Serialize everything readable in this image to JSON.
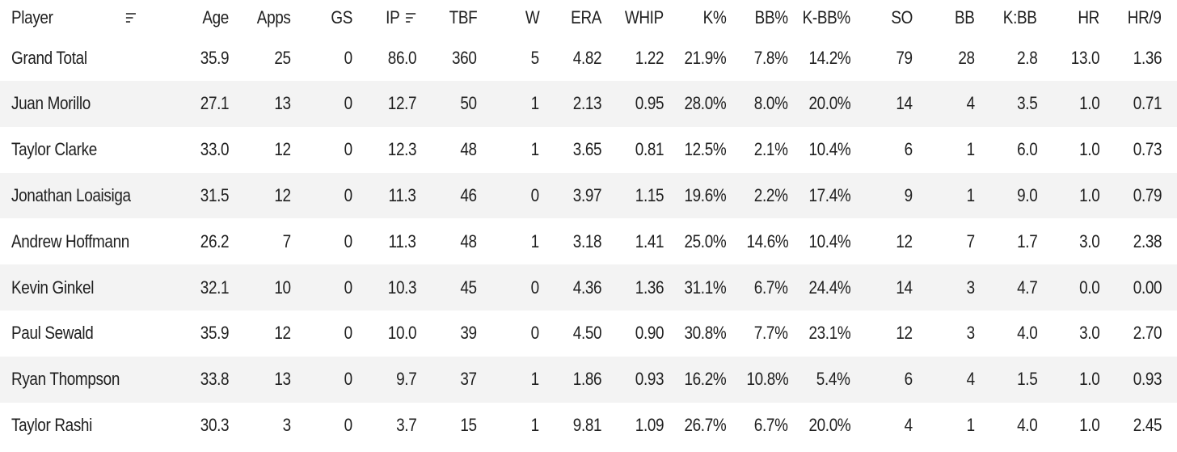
{
  "table": {
    "columns": [
      {
        "key": "player",
        "label": "Player",
        "sortable_icon": "sort-lines-icon"
      },
      {
        "key": "age",
        "label": "Age"
      },
      {
        "key": "apps",
        "label": "Apps"
      },
      {
        "key": "gs",
        "label": "GS"
      },
      {
        "key": "ip",
        "label": "IP",
        "sorted_icon": "sort-desc-icon"
      },
      {
        "key": "tbf",
        "label": "TBF"
      },
      {
        "key": "w",
        "label": "W"
      },
      {
        "key": "era",
        "label": "ERA"
      },
      {
        "key": "whip",
        "label": "WHIP"
      },
      {
        "key": "kpct",
        "label": "K%"
      },
      {
        "key": "bbpct",
        "label": "BB%"
      },
      {
        "key": "kbbpct",
        "label": "K-BB%"
      },
      {
        "key": "so",
        "label": "SO"
      },
      {
        "key": "bb",
        "label": "BB"
      },
      {
        "key": "kbb",
        "label": "K:BB"
      },
      {
        "key": "hr",
        "label": "HR"
      },
      {
        "key": "hr9",
        "label": "HR/9"
      }
    ],
    "total": [
      "Grand Total",
      "35.9",
      "25",
      "0",
      "86.0",
      "360",
      "5",
      "4.82",
      "1.22",
      "21.9%",
      "7.8%",
      "14.2%",
      "79",
      "28",
      "2.8",
      "13.0",
      "1.36"
    ],
    "rows": [
      [
        "Juan Morillo",
        "27.1",
        "13",
        "0",
        "12.7",
        "50",
        "1",
        "2.13",
        "0.95",
        "28.0%",
        "8.0%",
        "20.0%",
        "14",
        "4",
        "3.5",
        "1.0",
        "0.71"
      ],
      [
        "Taylor Clarke",
        "33.0",
        "12",
        "0",
        "12.3",
        "48",
        "1",
        "3.65",
        "0.81",
        "12.5%",
        "2.1%",
        "10.4%",
        "6",
        "1",
        "6.0",
        "1.0",
        "0.73"
      ],
      [
        "Jonathan Loaisiga",
        "31.5",
        "12",
        "0",
        "11.3",
        "46",
        "0",
        "3.97",
        "1.15",
        "19.6%",
        "2.2%",
        "17.4%",
        "9",
        "1",
        "9.0",
        "1.0",
        "0.79"
      ],
      [
        "Andrew Hoffmann",
        "26.2",
        "7",
        "0",
        "11.3",
        "48",
        "1",
        "3.18",
        "1.41",
        "25.0%",
        "14.6%",
        "10.4%",
        "12",
        "7",
        "1.7",
        "3.0",
        "2.38"
      ],
      [
        "Kevin Ginkel",
        "32.1",
        "10",
        "0",
        "10.3",
        "45",
        "0",
        "4.36",
        "1.36",
        "31.1%",
        "6.7%",
        "24.4%",
        "14",
        "3",
        "4.7",
        "0.0",
        "0.00"
      ],
      [
        "Paul Sewald",
        "35.9",
        "12",
        "0",
        "10.0",
        "39",
        "0",
        "4.50",
        "0.90",
        "30.8%",
        "7.7%",
        "23.1%",
        "12",
        "3",
        "4.0",
        "3.0",
        "2.70"
      ],
      [
        "Ryan Thompson",
        "33.8",
        "13",
        "0",
        "9.7",
        "37",
        "1",
        "1.86",
        "0.93",
        "16.2%",
        "10.8%",
        "5.4%",
        "6",
        "4",
        "1.5",
        "1.0",
        "0.93"
      ],
      [
        "Taylor Rashi",
        "30.3",
        "3",
        "0",
        "3.7",
        "15",
        "1",
        "9.81",
        "1.09",
        "26.7%",
        "6.7%",
        "20.0%",
        "4",
        "1",
        "4.0",
        "1.0",
        "2.45"
      ]
    ],
    "colors": {
      "row_stripe": "#f3f3f3",
      "row_plain": "#ffffff",
      "divider": "#cfcfcf",
      "text": "#1f1f1f"
    }
  }
}
